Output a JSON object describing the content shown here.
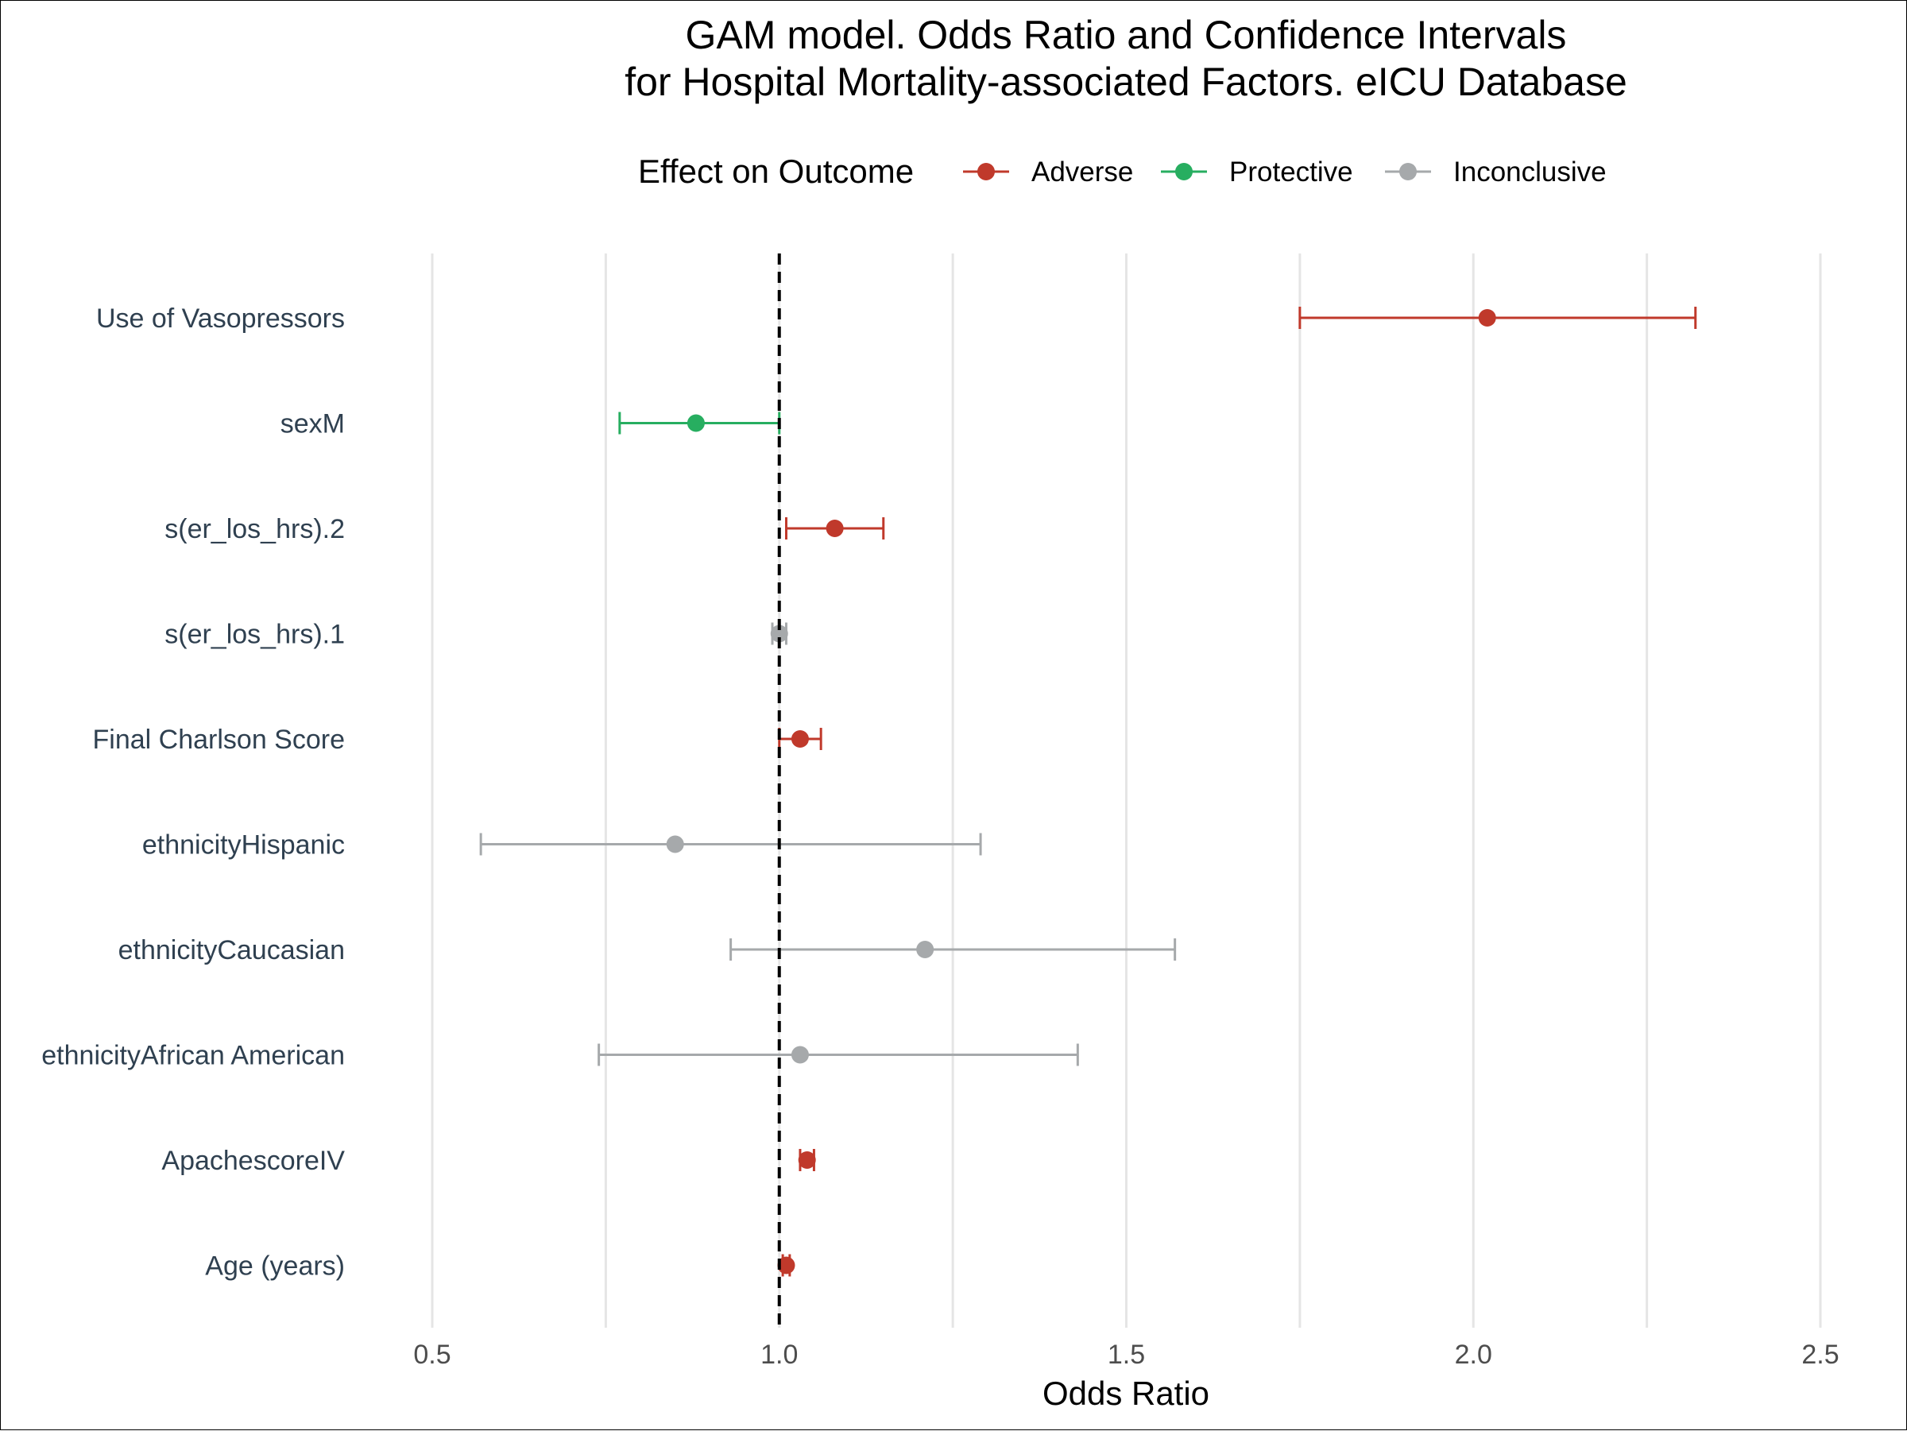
{
  "chart_data": {
    "type": "forest",
    "title_line1": "GAM model. Odds Ratio and Confidence Intervals",
    "title_line2": "for Hospital Mortality-associated Factors. eICU Database",
    "xlabel": "Odds Ratio",
    "ylabel": "",
    "xlim": [
      0.5,
      2.5
    ],
    "xticks": [
      "0.5",
      "1.0",
      "1.5",
      "2.0",
      "2.5"
    ],
    "reference_line": 1.0,
    "grid": true,
    "legend": {
      "title": "Effect on Outcome",
      "position": "top",
      "entries": [
        {
          "name": "Adverse",
          "color": "#c0392b"
        },
        {
          "name": "Protective",
          "color": "#27ae60"
        },
        {
          "name": "Inconclusive",
          "color": "#a6a9ab"
        }
      ]
    },
    "rows": [
      {
        "label": "Use of Vasopressors",
        "or": 2.02,
        "lower": 1.75,
        "upper": 2.32,
        "effect": "Adverse"
      },
      {
        "label": "sexM",
        "or": 0.88,
        "lower": 0.77,
        "upper": 1.0,
        "effect": "Protective"
      },
      {
        "label": "s(er_los_hrs).2",
        "or": 1.08,
        "lower": 1.01,
        "upper": 1.15,
        "effect": "Adverse"
      },
      {
        "label": "s(er_los_hrs).1",
        "or": 1.0,
        "lower": 0.99,
        "upper": 1.01,
        "effect": "Inconclusive"
      },
      {
        "label": "Final Charlson Score",
        "or": 1.03,
        "lower": 1.0,
        "upper": 1.06,
        "effect": "Adverse"
      },
      {
        "label": "ethnicityHispanic",
        "or": 0.85,
        "lower": 0.57,
        "upper": 1.29,
        "effect": "Inconclusive"
      },
      {
        "label": "ethnicityCaucasian",
        "or": 1.21,
        "lower": 0.93,
        "upper": 1.57,
        "effect": "Inconclusive"
      },
      {
        "label": "ethnicityAfrican American",
        "or": 1.03,
        "lower": 0.74,
        "upper": 1.43,
        "effect": "Inconclusive"
      },
      {
        "label": "ApachescoreIV",
        "or": 1.04,
        "lower": 1.03,
        "upper": 1.05,
        "effect": "Adverse"
      },
      {
        "label": "Age (years)",
        "or": 1.01,
        "lower": 1.005,
        "upper": 1.015,
        "effect": "Adverse"
      }
    ]
  }
}
